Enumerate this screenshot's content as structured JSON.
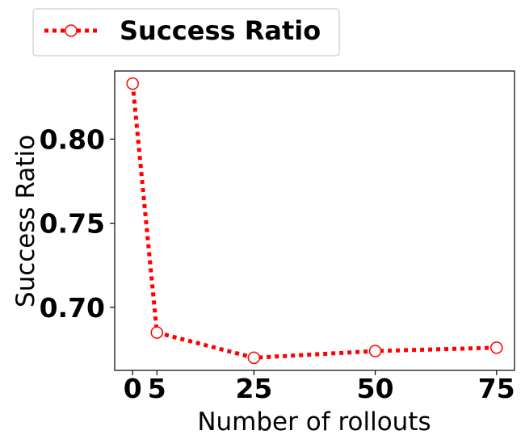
{
  "chart_data": {
    "type": "line",
    "x": [
      0,
      5,
      25,
      50,
      75
    ],
    "series": [
      {
        "name": "Success Ratio",
        "values": [
          0.833,
          0.685,
          0.67,
          0.674,
          0.676
        ],
        "color": "#ff0000",
        "line_style": "dotted",
        "marker": "open-circle"
      }
    ],
    "xlabel": "Number of rollouts",
    "ylabel": "Success Ratio",
    "x_ticks": [
      0,
      5,
      25,
      50,
      75
    ],
    "x_tick_labels": [
      "0",
      "5",
      "25",
      "50",
      "75"
    ],
    "y_ticks": [
      0.7,
      0.75,
      0.8
    ],
    "y_tick_labels": [
      "0.70",
      "0.75",
      "0.80"
    ],
    "xlim": [
      -3.7,
      78.7
    ],
    "ylim": [
      0.6625,
      0.8405
    ],
    "grid": false,
    "legend_position": "top-left, above plot"
  }
}
